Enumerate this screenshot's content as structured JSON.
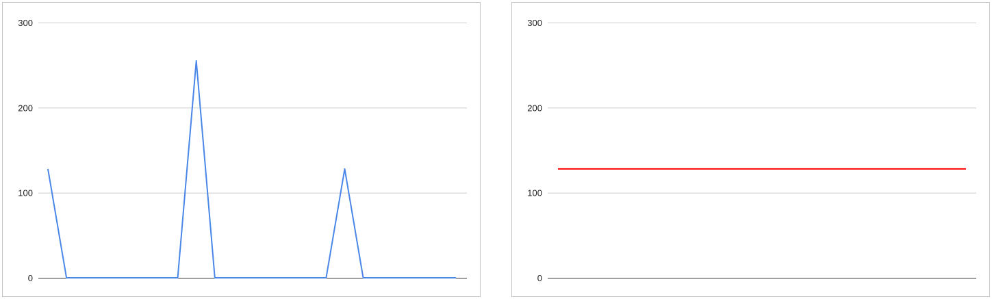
{
  "chart_data": [
    {
      "type": "line",
      "title": "",
      "xlabel": "",
      "ylabel": "",
      "ylim": [
        0,
        300
      ],
      "yticks": [
        0,
        100,
        200,
        300
      ],
      "ytick_labels": [
        "0",
        "100",
        "200",
        "300"
      ],
      "grid": true,
      "legend": "none",
      "x": [
        0,
        1,
        2,
        3,
        4,
        5,
        6,
        7,
        8,
        9,
        10,
        11,
        12,
        13,
        14,
        15,
        16,
        17,
        18,
        19,
        20,
        21,
        22
      ],
      "series": [
        {
          "color": "#4a86e8",
          "values": [
            128,
            0,
            0,
            0,
            0,
            0,
            0,
            0,
            255,
            0,
            0,
            0,
            0,
            0,
            0,
            0,
            128,
            0,
            0,
            0,
            0,
            0,
            0
          ]
        }
      ]
    },
    {
      "type": "line",
      "title": "",
      "xlabel": "",
      "ylabel": "",
      "ylim": [
        0,
        300
      ],
      "yticks": [
        0,
        100,
        200,
        300
      ],
      "ytick_labels": [
        "0",
        "100",
        "200",
        "300"
      ],
      "grid": true,
      "legend": "none",
      "x": [
        0,
        1
      ],
      "series": [
        {
          "color": "#ff0000",
          "values": [
            128,
            128
          ]
        }
      ]
    }
  ]
}
